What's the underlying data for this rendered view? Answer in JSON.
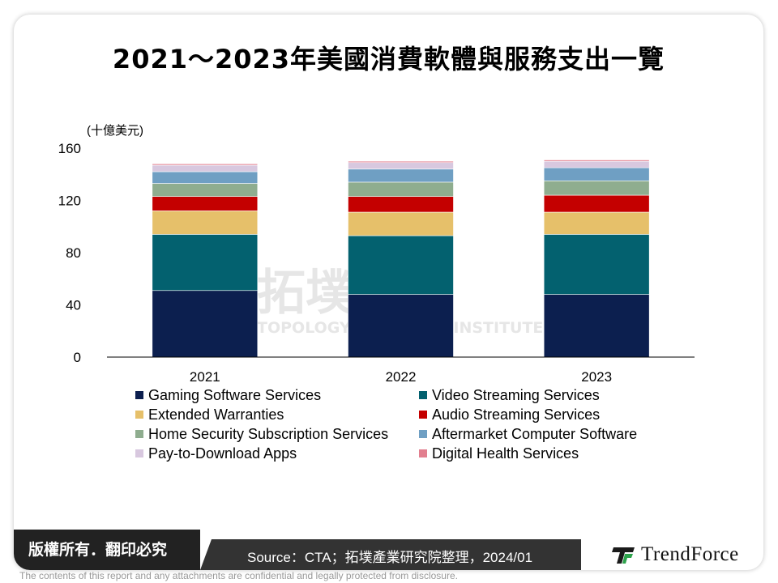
{
  "title": "2021～2023年美國消費軟體與服務支出一覽",
  "unit_label": "(十億美元)",
  "watermark": {
    "cn": "拓墣TRI",
    "en": "TOPOLOGY RESEARCH INSTITUTE"
  },
  "footer": {
    "copyright": "版權所有．翻印必究",
    "source": "Source：CTA；拓墣產業研究院整理，2024/01",
    "brand": "TrendForce",
    "disclaimer": "The contents of this report and any attachments are confidential and legally protected from disclosure."
  },
  "chart_data": {
    "type": "bar",
    "stacked": true,
    "categories": [
      "2021",
      "2022",
      "2023"
    ],
    "ylabel": "(十億美元)",
    "ylim": [
      0,
      160
    ],
    "yticks": [
      0,
      40,
      80,
      120,
      160
    ],
    "grid": false,
    "legend_position": "bottom",
    "series": [
      {
        "name": "Gaming Software Services",
        "color": "#0c1f4f",
        "values": [
          51,
          48,
          48
        ]
      },
      {
        "name": "Video Streaming Services",
        "color": "#03616f",
        "values": [
          43,
          45,
          46
        ]
      },
      {
        "name": "Extended Warranties",
        "color": "#e6c06a",
        "values": [
          18,
          18,
          17
        ]
      },
      {
        "name": "Audio Streaming Services",
        "color": "#c40000",
        "values": [
          11,
          12,
          13
        ]
      },
      {
        "name": "Home Security Subscription Services",
        "color": "#8fad8f",
        "values": [
          10,
          11,
          11
        ]
      },
      {
        "name": "Aftermarket Computer Software",
        "color": "#6f9fc3",
        "values": [
          9,
          10,
          10
        ]
      },
      {
        "name": "Pay-to-Download Apps",
        "color": "#d8c8df",
        "values": [
          5,
          5,
          5
        ]
      },
      {
        "name": "Digital Health Services",
        "color": "#e27f8f",
        "values": [
          1,
          1,
          1
        ]
      }
    ]
  }
}
